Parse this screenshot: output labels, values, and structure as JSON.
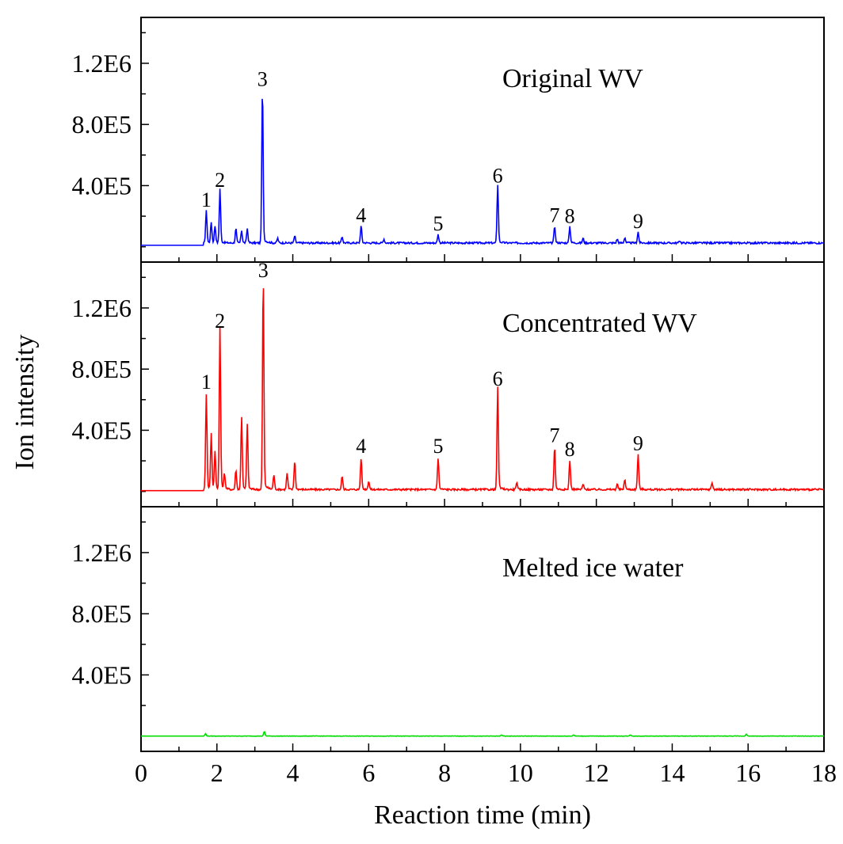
{
  "chart_data": {
    "type": "line",
    "layout": "three vertically stacked panels sharing x axis",
    "xlabel": "Reaction time (min)",
    "ylabel": "Ion intensity",
    "xlim": [
      0,
      18
    ],
    "x_ticks": [
      0,
      2,
      4,
      6,
      8,
      10,
      12,
      14,
      16,
      18
    ],
    "x_tick_labels": [
      "0",
      "2",
      "4",
      "6",
      "8",
      "10",
      "12",
      "14",
      "16",
      "18"
    ],
    "ylim": [
      -100000,
      1500000
    ],
    "y_ticks": [
      400000,
      800000,
      1200000
    ],
    "y_tick_labels": [
      "4.0E5",
      "8.0E5",
      "1.2E6"
    ],
    "panels": [
      {
        "title": "Original WV",
        "color": "#0000ff",
        "baseline": 10000,
        "peaks": [
          {
            "label": "1",
            "x": 1.72,
            "y": 220000
          },
          {
            "label": "2",
            "x": 2.08,
            "y": 350000
          },
          {
            "label": "3",
            "x": 3.2,
            "y": 1010000
          },
          {
            "label": "4",
            "x": 5.8,
            "y": 120000
          },
          {
            "label": "5",
            "x": 7.83,
            "y": 65000
          },
          {
            "label": "6",
            "x": 9.4,
            "y": 380000
          },
          {
            "label": "7",
            "x": 10.9,
            "y": 120000
          },
          {
            "label": "8",
            "x": 11.3,
            "y": 115000
          },
          {
            "label": "9",
            "x": 13.1,
            "y": 80000
          }
        ],
        "minor_peaks": [
          {
            "x": 1.85,
            "y": 140000
          },
          {
            "x": 1.95,
            "y": 120000
          },
          {
            "x": 2.5,
            "y": 100000
          },
          {
            "x": 2.65,
            "y": 90000
          },
          {
            "x": 2.8,
            "y": 100000
          },
          {
            "x": 3.6,
            "y": 40000
          },
          {
            "x": 4.05,
            "y": 55000
          },
          {
            "x": 5.3,
            "y": 50000
          },
          {
            "x": 6.4,
            "y": 35000
          },
          {
            "x": 11.65,
            "y": 40000
          },
          {
            "x": 12.55,
            "y": 35000
          },
          {
            "x": 12.75,
            "y": 45000
          },
          {
            "x": 14.2,
            "y": 25000
          }
        ]
      },
      {
        "title": "Concentrated WV",
        "color": "#ff0000",
        "baseline": 5000,
        "peaks": [
          {
            "label": "1",
            "x": 1.72,
            "y": 630000
          },
          {
            "label": "2",
            "x": 2.08,
            "y": 1030000
          },
          {
            "label": "3",
            "x": 3.22,
            "y": 1360000
          },
          {
            "label": "4",
            "x": 5.8,
            "y": 210000
          },
          {
            "label": "5",
            "x": 7.83,
            "y": 210000
          },
          {
            "label": "6",
            "x": 9.4,
            "y": 650000
          },
          {
            "label": "7",
            "x": 10.9,
            "y": 280000
          },
          {
            "label": "8",
            "x": 11.3,
            "y": 190000
          },
          {
            "label": "9",
            "x": 13.1,
            "y": 230000
          }
        ],
        "minor_peaks": [
          {
            "x": 1.85,
            "y": 360000
          },
          {
            "x": 1.95,
            "y": 250000
          },
          {
            "x": 2.2,
            "y": 100000
          },
          {
            "x": 2.5,
            "y": 130000
          },
          {
            "x": 2.65,
            "y": 470000
          },
          {
            "x": 2.8,
            "y": 420000
          },
          {
            "x": 3.5,
            "y": 100000
          },
          {
            "x": 3.85,
            "y": 110000
          },
          {
            "x": 4.05,
            "y": 190000
          },
          {
            "x": 5.3,
            "y": 90000
          },
          {
            "x": 6.0,
            "y": 60000
          },
          {
            "x": 9.9,
            "y": 50000
          },
          {
            "x": 11.65,
            "y": 40000
          },
          {
            "x": 12.55,
            "y": 40000
          },
          {
            "x": 12.75,
            "y": 70000
          },
          {
            "x": 15.05,
            "y": 50000
          }
        ]
      },
      {
        "title": "Melted ice water",
        "color": "#00dd00",
        "baseline": 0,
        "peaks": [],
        "minor_peaks": [
          {
            "x": 1.7,
            "y": 15000
          },
          {
            "x": 3.25,
            "y": 30000
          },
          {
            "x": 9.5,
            "y": 8000
          },
          {
            "x": 11.4,
            "y": 8000
          },
          {
            "x": 12.9,
            "y": 8000
          },
          {
            "x": 15.95,
            "y": 12000
          }
        ]
      }
    ]
  }
}
